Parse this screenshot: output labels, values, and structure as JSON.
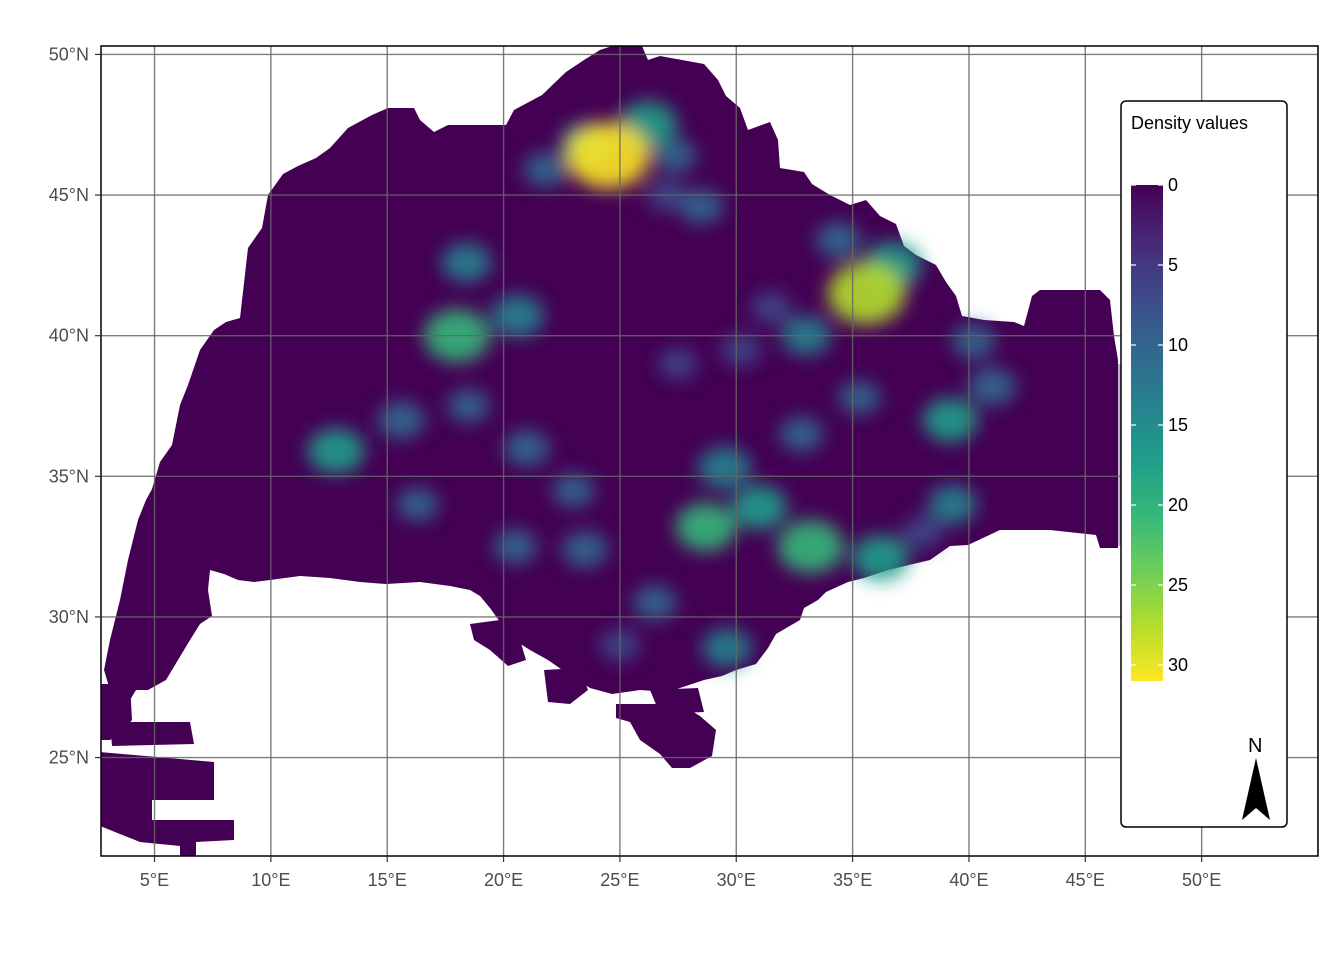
{
  "map": {
    "x_ticks": [
      "5°E",
      "10°E",
      "15°E",
      "20°E",
      "25°E",
      "30°E",
      "35°E",
      "40°E",
      "45°E",
      "50°E"
    ],
    "y_ticks": [
      "50°N",
      "45°N",
      "40°N",
      "35°N",
      "30°N",
      "25°N"
    ],
    "lon_values": [
      5,
      10,
      15,
      20,
      25,
      30,
      35,
      40,
      45,
      50
    ],
    "lat_values": [
      50,
      45,
      40,
      35,
      30,
      25
    ],
    "lon_range": [
      2.7,
      55.0
    ],
    "lat_range": [
      21.5,
      50.3
    ],
    "background_fill": "#440154",
    "gridline_color": "#666666",
    "hotspots": [
      {
        "lon": 24.5,
        "lat": 46.4,
        "value": 31
      },
      {
        "lon": 23.6,
        "lat": 46.8,
        "value": 16
      },
      {
        "lon": 26.2,
        "lat": 47.5,
        "value": 18
      },
      {
        "lon": 21.8,
        "lat": 45.9,
        "value": 10
      },
      {
        "lon": 27.4,
        "lat": 46.4,
        "value": 9
      },
      {
        "lon": 28.5,
        "lat": 44.6,
        "value": 10
      },
      {
        "lon": 27.0,
        "lat": 45.0,
        "value": 8
      },
      {
        "lon": 35.6,
        "lat": 41.5,
        "value": 28
      },
      {
        "lon": 36.7,
        "lat": 42.5,
        "value": 18
      },
      {
        "lon": 34.4,
        "lat": 43.4,
        "value": 11
      },
      {
        "lon": 33.0,
        "lat": 40.0,
        "value": 13
      },
      {
        "lon": 18.0,
        "lat": 40.0,
        "value": 22
      },
      {
        "lon": 18.4,
        "lat": 42.6,
        "value": 13
      },
      {
        "lon": 20.6,
        "lat": 40.7,
        "value": 15
      },
      {
        "lon": 12.8,
        "lat": 35.9,
        "value": 17
      },
      {
        "lon": 15.6,
        "lat": 37.0,
        "value": 12
      },
      {
        "lon": 18.5,
        "lat": 37.5,
        "value": 9
      },
      {
        "lon": 30.2,
        "lat": 39.5,
        "value": 8
      },
      {
        "lon": 29.5,
        "lat": 35.3,
        "value": 15
      },
      {
        "lon": 31.0,
        "lat": 33.9,
        "value": 16
      },
      {
        "lon": 28.7,
        "lat": 33.2,
        "value": 19
      },
      {
        "lon": 33.2,
        "lat": 32.5,
        "value": 22
      },
      {
        "lon": 36.2,
        "lat": 32.1,
        "value": 17
      },
      {
        "lon": 39.2,
        "lat": 37.0,
        "value": 16
      },
      {
        "lon": 41.0,
        "lat": 38.2,
        "value": 12
      },
      {
        "lon": 40.2,
        "lat": 39.8,
        "value": 10
      },
      {
        "lon": 39.3,
        "lat": 34.0,
        "value": 13
      },
      {
        "lon": 21.0,
        "lat": 36.0,
        "value": 11
      },
      {
        "lon": 23.5,
        "lat": 32.4,
        "value": 11
      },
      {
        "lon": 20.5,
        "lat": 32.5,
        "value": 10
      },
      {
        "lon": 29.6,
        "lat": 28.9,
        "value": 13
      },
      {
        "lon": 26.5,
        "lat": 30.5,
        "value": 10
      },
      {
        "lon": 25.0,
        "lat": 29.0,
        "value": 8
      },
      {
        "lon": 32.8,
        "lat": 36.5,
        "value": 10
      },
      {
        "lon": 35.3,
        "lat": 37.8,
        "value": 9
      },
      {
        "lon": 27.5,
        "lat": 39.0,
        "value": 7
      },
      {
        "lon": 31.5,
        "lat": 41.0,
        "value": 8
      },
      {
        "lon": 16.3,
        "lat": 34.0,
        "value": 9
      },
      {
        "lon": 38.0,
        "lat": 33.0,
        "value": 8
      },
      {
        "lon": 23.0,
        "lat": 34.5,
        "value": 9
      }
    ]
  },
  "legend": {
    "title": "Density values",
    "labels": [
      "0",
      "5",
      "10",
      "15",
      "20",
      "25",
      "30"
    ],
    "values": [
      0,
      5,
      10,
      15,
      20,
      25,
      30
    ],
    "max_value": 31,
    "colors": [
      "#440154",
      "#482878",
      "#3E4989",
      "#31688E",
      "#26828E",
      "#1F9E89",
      "#35B779",
      "#6DCD59",
      "#B4DE2C",
      "#FDE725"
    ]
  },
  "north_arrow": {
    "label": "N"
  },
  "overlay_patch_color": "#c0b5c9"
}
